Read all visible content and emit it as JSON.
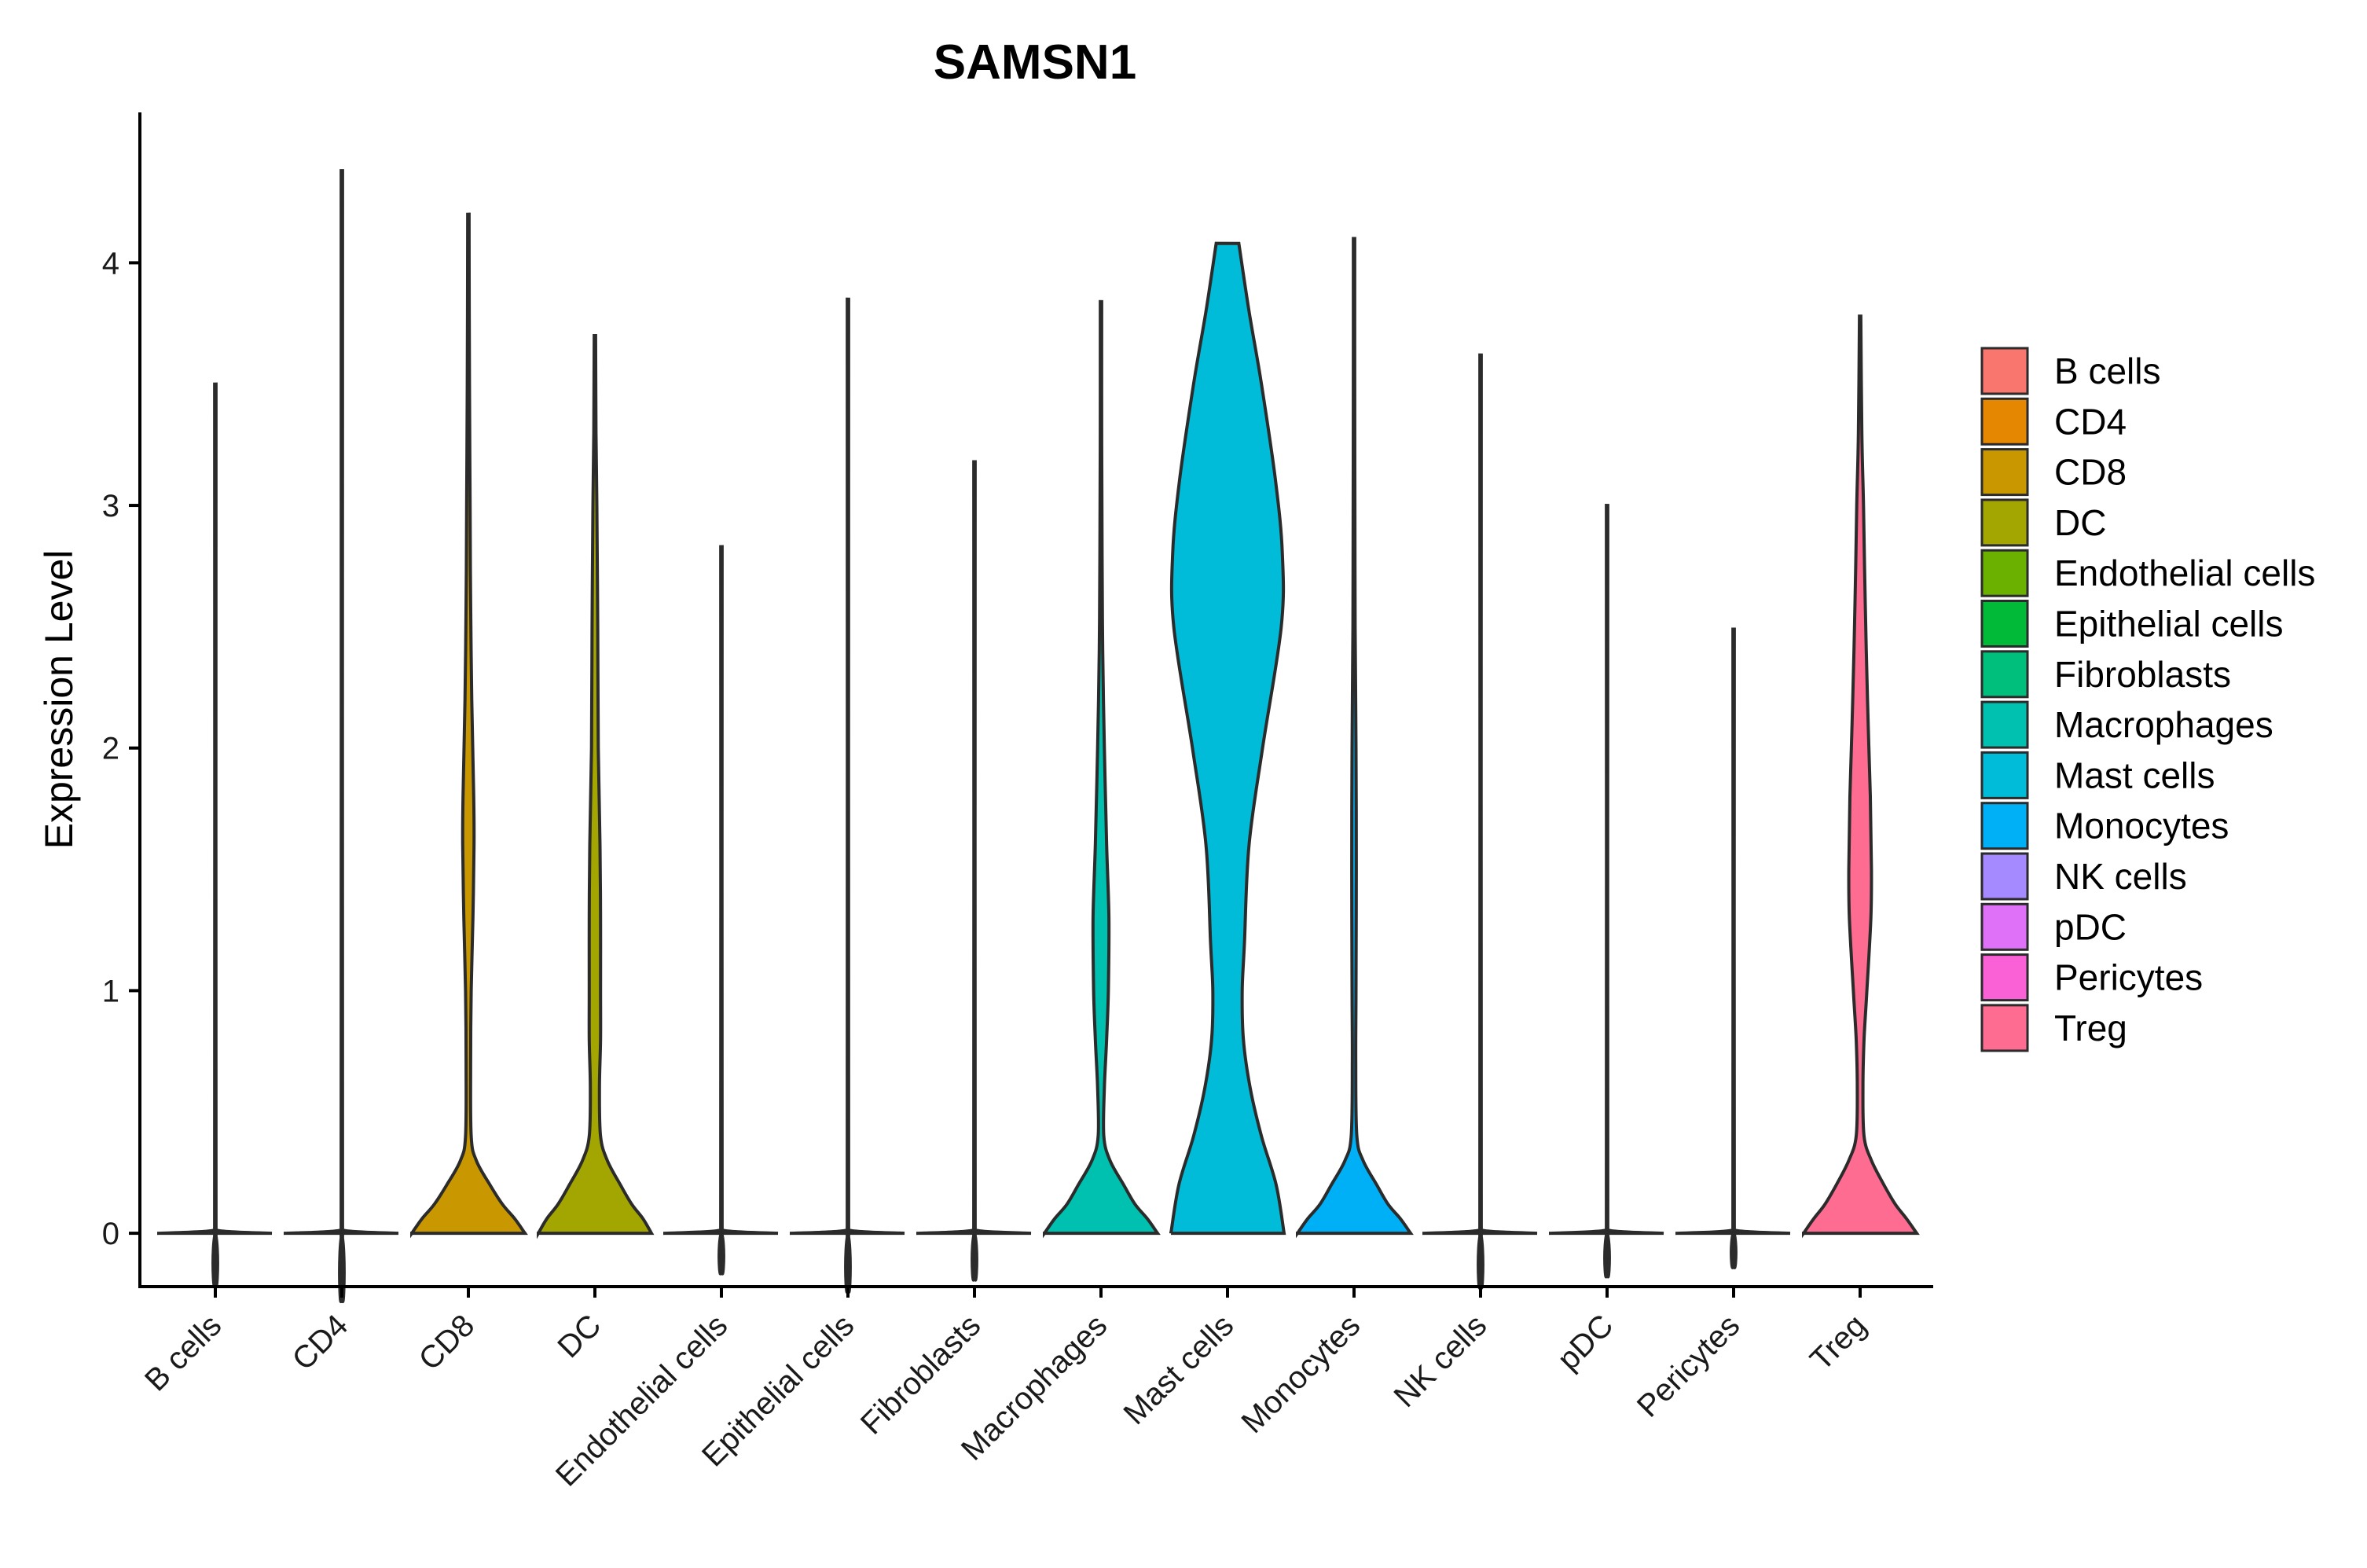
{
  "chart_data": {
    "type": "violin",
    "title": "SAMSN1",
    "xlabel": "",
    "ylabel": "Expression Level",
    "ylim": [
      -0.22,
      4.62
    ],
    "yticks": [
      0,
      1,
      2,
      3,
      4
    ],
    "legend_position": "right",
    "categories": [
      "B cells",
      "CD4",
      "CD8",
      "DC",
      "Endothelial cells",
      "Epithelial cells",
      "Fibroblasts",
      "Macrophages",
      "Mast cells",
      "Monocytes",
      "NK cells",
      "pDC",
      "Pericytes",
      "Treg"
    ],
    "colors": [
      "#F8766D",
      "#E58700",
      "#C99800",
      "#A3A500",
      "#6BB100",
      "#00BA38",
      "#00BF7D",
      "#00C0AF",
      "#00BCD8",
      "#00B0F6",
      "#A58AFF",
      "#DF70F8",
      "#FB61D7",
      "#FF6C91"
    ],
    "max_values": [
      3.5,
      4.38,
      4.2,
      3.7,
      2.83,
      3.85,
      3.18,
      3.84,
      4.08,
      4.1,
      3.62,
      3.0,
      2.49,
      3.78
    ],
    "density_profiles": [
      [
        [
          0,
          1.0
        ],
        [
          0.012,
          0.04
        ],
        [
          0.05,
          0.012
        ],
        [
          3.5,
          0.012
        ]
      ],
      [
        [
          0,
          1.0
        ],
        [
          0.012,
          0.04
        ],
        [
          0.05,
          0.012
        ],
        [
          4.38,
          0.012
        ]
      ],
      [
        [
          0,
          1.0
        ],
        [
          0.06,
          0.82
        ],
        [
          0.12,
          0.6
        ],
        [
          0.2,
          0.38
        ],
        [
          0.3,
          0.14
        ],
        [
          0.4,
          0.05
        ],
        [
          0.7,
          0.04
        ],
        [
          1.0,
          0.05
        ],
        [
          1.3,
          0.08
        ],
        [
          1.6,
          0.1
        ],
        [
          1.8,
          0.095
        ],
        [
          2.2,
          0.06
        ],
        [
          2.6,
          0.04
        ],
        [
          3.0,
          0.03
        ],
        [
          3.5,
          0.02
        ],
        [
          3.8,
          0.015
        ],
        [
          4.2,
          0.012
        ]
      ],
      [
        [
          0,
          1.0
        ],
        [
          0.06,
          0.85
        ],
        [
          0.12,
          0.65
        ],
        [
          0.2,
          0.45
        ],
        [
          0.3,
          0.22
        ],
        [
          0.4,
          0.1
        ],
        [
          0.6,
          0.08
        ],
        [
          0.8,
          0.1
        ],
        [
          1.0,
          0.1
        ],
        [
          1.3,
          0.1
        ],
        [
          1.6,
          0.09
        ],
        [
          2.0,
          0.06
        ],
        [
          2.5,
          0.05
        ],
        [
          3.0,
          0.035
        ],
        [
          3.3,
          0.02
        ],
        [
          3.7,
          0.012
        ]
      ],
      [
        [
          0,
          1.0
        ],
        [
          0.012,
          0.04
        ],
        [
          0.05,
          0.012
        ],
        [
          2.83,
          0.012
        ]
      ],
      [
        [
          0,
          1.0
        ],
        [
          0.012,
          0.04
        ],
        [
          0.05,
          0.012
        ],
        [
          3.85,
          0.012
        ]
      ],
      [
        [
          0,
          1.0
        ],
        [
          0.012,
          0.04
        ],
        [
          0.05,
          0.012
        ],
        [
          3.18,
          0.012
        ]
      ],
      [
        [
          0,
          1.0
        ],
        [
          0.06,
          0.82
        ],
        [
          0.12,
          0.6
        ],
        [
          0.2,
          0.4
        ],
        [
          0.3,
          0.16
        ],
        [
          0.4,
          0.05
        ],
        [
          0.6,
          0.06
        ],
        [
          0.8,
          0.1
        ],
        [
          1.0,
          0.13
        ],
        [
          1.3,
          0.14
        ],
        [
          1.6,
          0.1
        ],
        [
          2.0,
          0.06
        ],
        [
          2.4,
          0.03
        ],
        [
          2.8,
          0.02
        ],
        [
          3.3,
          0.012
        ],
        [
          3.84,
          0.012
        ]
      ],
      [
        [
          0,
          1.0
        ],
        [
          0.2,
          0.86
        ],
        [
          0.4,
          0.6
        ],
        [
          0.6,
          0.4
        ],
        [
          0.8,
          0.28
        ],
        [
          1.0,
          0.26
        ],
        [
          1.2,
          0.3
        ],
        [
          1.6,
          0.38
        ],
        [
          2.0,
          0.62
        ],
        [
          2.5,
          0.95
        ],
        [
          2.8,
          0.97
        ],
        [
          3.1,
          0.85
        ],
        [
          3.5,
          0.6
        ],
        [
          3.8,
          0.38
        ],
        [
          4.08,
          0.2
        ]
      ],
      [
        [
          0,
          1.0
        ],
        [
          0.06,
          0.82
        ],
        [
          0.12,
          0.6
        ],
        [
          0.2,
          0.4
        ],
        [
          0.3,
          0.16
        ],
        [
          0.4,
          0.05
        ],
        [
          0.7,
          0.03
        ],
        [
          1.0,
          0.035
        ],
        [
          1.5,
          0.04
        ],
        [
          2.0,
          0.035
        ],
        [
          2.5,
          0.02
        ],
        [
          3.0,
          0.015
        ],
        [
          3.5,
          0.012
        ],
        [
          4.1,
          0.012
        ]
      ],
      [
        [
          0,
          1.0
        ],
        [
          0.012,
          0.04
        ],
        [
          0.05,
          0.012
        ],
        [
          3.62,
          0.012
        ]
      ],
      [
        [
          0,
          1.0
        ],
        [
          0.012,
          0.04
        ],
        [
          0.05,
          0.012
        ],
        [
          3.0,
          0.012
        ]
      ],
      [
        [
          0,
          1.0
        ],
        [
          0.012,
          0.04
        ],
        [
          0.05,
          0.012
        ],
        [
          2.49,
          0.012
        ]
      ],
      [
        [
          0,
          1.0
        ],
        [
          0.06,
          0.82
        ],
        [
          0.12,
          0.62
        ],
        [
          0.2,
          0.42
        ],
        [
          0.3,
          0.2
        ],
        [
          0.4,
          0.07
        ],
        [
          0.6,
          0.05
        ],
        [
          0.8,
          0.07
        ],
        [
          1.0,
          0.12
        ],
        [
          1.3,
          0.19
        ],
        [
          1.5,
          0.2
        ],
        [
          1.8,
          0.18
        ],
        [
          2.2,
          0.13
        ],
        [
          2.6,
          0.09
        ],
        [
          3.0,
          0.06
        ],
        [
          3.3,
          0.03
        ],
        [
          3.78,
          0.012
        ]
      ]
    ]
  }
}
